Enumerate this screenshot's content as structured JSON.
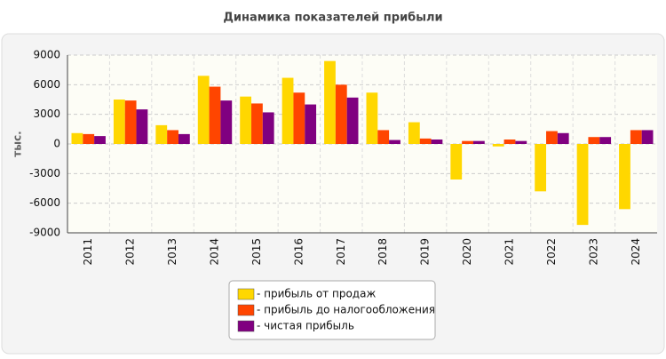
{
  "chart_data": {
    "type": "bar",
    "title": "Динамика показателей прибыли",
    "y_label": "тыс.",
    "categories": [
      "2011",
      "2012",
      "2013",
      "2014",
      "2015",
      "2016",
      "2017",
      "2018",
      "2019",
      "2020",
      "2021",
      "2022",
      "2023",
      "2024"
    ],
    "series": [
      {
        "name": "- прибыль от продаж",
        "color": "#ffd700",
        "values": [
          1100,
          4500,
          1900,
          6900,
          4800,
          6700,
          8400,
          5200,
          2200,
          -3600,
          -250,
          -4800,
          -8200,
          -6600
        ]
      },
      {
        "name": "- прибыль до налогообложения",
        "color": "#ff4500",
        "values": [
          1000,
          4400,
          1400,
          5800,
          4100,
          5200,
          6000,
          1400,
          550,
          300,
          450,
          1300,
          700,
          1400
        ]
      },
      {
        "name": "- чистая прибыль",
        "color": "#800080",
        "values": [
          800,
          3500,
          1000,
          4400,
          3200,
          4000,
          4700,
          400,
          450,
          300,
          300,
          1100,
          700,
          1400
        ]
      }
    ],
    "ylim": [
      -9000,
      9000
    ],
    "yticks": [
      -9000,
      -6000,
      -3000,
      0,
      3000,
      6000,
      9000
    ],
    "grid": true
  }
}
